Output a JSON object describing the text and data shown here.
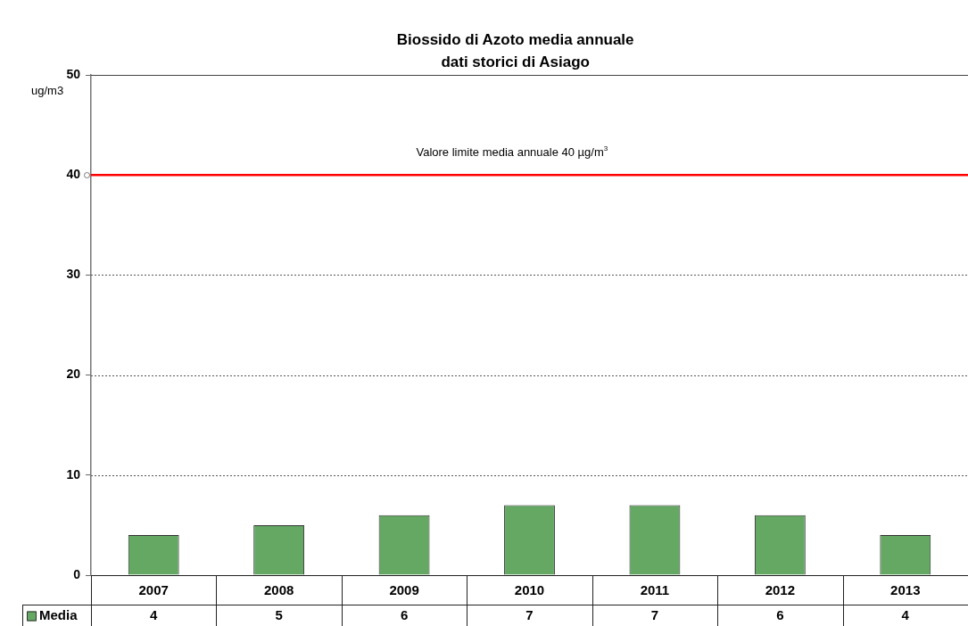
{
  "chart_data": {
    "type": "bar",
    "title": "Biossido di Azoto media annuale",
    "subtitle": "dati storici di Asiago",
    "ylabel": "ug/m3",
    "categories": [
      "2007",
      "2008",
      "2009",
      "2010",
      "2011",
      "2012",
      "2013"
    ],
    "series": [
      {
        "name": "Media",
        "color": "#64a864",
        "values": [
          4,
          5,
          6,
          7,
          7,
          6,
          4
        ]
      }
    ],
    "ylim": [
      0,
      50
    ],
    "yticks": [
      0,
      10,
      20,
      30,
      40,
      50
    ],
    "grid": "y",
    "legend": "bottom left",
    "data_labels": true,
    "ref_lines": [
      {
        "axis": "y",
        "value": 40,
        "label": "Valore limite media annuale 40 µg/m$^{3}$",
        "color": "#ff0000"
      }
    ]
  }
}
